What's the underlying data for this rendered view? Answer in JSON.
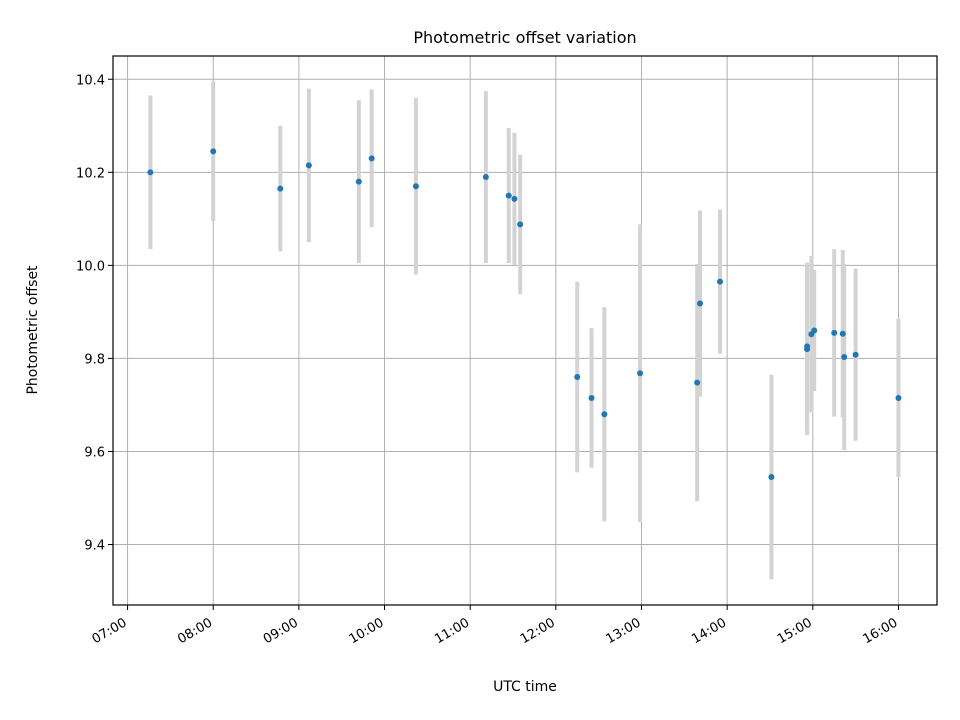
{
  "chart_data": {
    "type": "scatter",
    "title": "Photometric offset variation",
    "xlabel": "UTC time",
    "ylabel": "Photometric offset",
    "grid": true,
    "xlim": [
      6.83,
      16.45
    ],
    "ylim": [
      9.27,
      10.45
    ],
    "x_ticks": [
      {
        "value": 7,
        "label": "07:00"
      },
      {
        "value": 8,
        "label": "08:00"
      },
      {
        "value": 9,
        "label": "09:00"
      },
      {
        "value": 10,
        "label": "10:00"
      },
      {
        "value": 11,
        "label": "11:00"
      },
      {
        "value": 12,
        "label": "12:00"
      },
      {
        "value": 13,
        "label": "13:00"
      },
      {
        "value": 14,
        "label": "14:00"
      },
      {
        "value": 15,
        "label": "15:00"
      },
      {
        "value": 16,
        "label": "16:00"
      }
    ],
    "y_ticks": [
      {
        "value": 9.4,
        "label": "9.4"
      },
      {
        "value": 9.6,
        "label": "9.6"
      },
      {
        "value": 9.8,
        "label": "9.8"
      },
      {
        "value": 10.0,
        "label": "10.0"
      },
      {
        "value": 10.2,
        "label": "10.2"
      },
      {
        "value": 10.4,
        "label": "10.4"
      }
    ],
    "point_color": "#1f77b4",
    "errorbar_color": "#d3d3d3",
    "points": [
      {
        "x": "07:16",
        "y": 10.2,
        "err": 0.165
      },
      {
        "x": "08:00",
        "y": 10.245,
        "err": 0.15
      },
      {
        "x": "08:47",
        "y": 10.165,
        "err": 0.135
      },
      {
        "x": "09:07",
        "y": 10.215,
        "err": 0.165
      },
      {
        "x": "09:42",
        "y": 10.18,
        "err": 0.175
      },
      {
        "x": "09:51",
        "y": 10.23,
        "err": 0.148
      },
      {
        "x": "10:22",
        "y": 10.17,
        "err": 0.19
      },
      {
        "x": "11:11",
        "y": 10.19,
        "err": 0.185
      },
      {
        "x": "11:27",
        "y": 10.15,
        "err": 0.145
      },
      {
        "x": "11:31",
        "y": 10.143,
        "err": 0.142
      },
      {
        "x": "11:35",
        "y": 10.088,
        "err": 0.15
      },
      {
        "x": "12:15",
        "y": 9.76,
        "err": 0.205
      },
      {
        "x": "12:25",
        "y": 9.715,
        "err": 0.15
      },
      {
        "x": "12:34",
        "y": 9.68,
        "err": 0.23
      },
      {
        "x": "12:59",
        "y": 9.768,
        "err": 0.32
      },
      {
        "x": "13:39",
        "y": 9.748,
        "err": 0.255
      },
      {
        "x": "13:41",
        "y": 9.918,
        "err": 0.2
      },
      {
        "x": "13:55",
        "y": 9.965,
        "err": 0.155
      },
      {
        "x": "14:31",
        "y": 9.545,
        "err": 0.22
      },
      {
        "x": "14:56",
        "y": 9.82,
        "err": 0.185
      },
      {
        "x": "14:56",
        "y": 9.826,
        "err": 0.18
      },
      {
        "x": "14:59",
        "y": 9.852,
        "err": 0.168
      },
      {
        "x": "15:01",
        "y": 9.86,
        "err": 0.13
      },
      {
        "x": "15:15",
        "y": 9.855,
        "err": 0.18
      },
      {
        "x": "15:21",
        "y": 9.853,
        "err": 0.18
      },
      {
        "x": "15:22",
        "y": 9.803,
        "err": 0.2
      },
      {
        "x": "15:30",
        "y": 9.808,
        "err": 0.185
      },
      {
        "x": "16:00",
        "y": 9.715,
        "err": 0.17
      }
    ]
  }
}
